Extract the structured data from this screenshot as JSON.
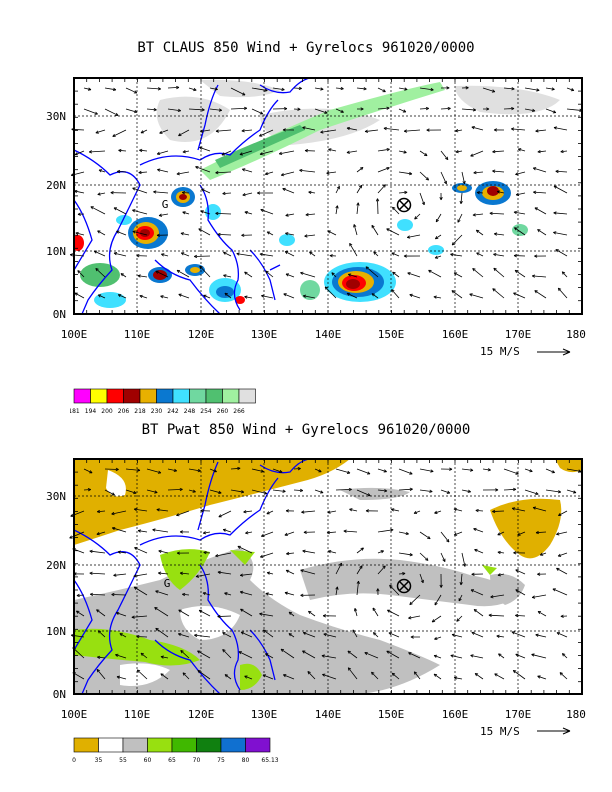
{
  "map1": {
    "title": "BT CLAUS 850 Wind + Gyrelocs 961020/0000",
    "lat_labels": [
      "30N",
      "20N",
      "10N",
      "0N"
    ],
    "lon_labels": [
      "100E",
      "110E",
      "120E",
      "130E",
      "140E",
      "150E",
      "160E",
      "170E",
      "180"
    ],
    "ref_vector": "15 M/S",
    "legend_values": [
      "181",
      "194",
      "200",
      "206",
      "218",
      "230",
      "242",
      "248",
      "254",
      "260",
      "266"
    ],
    "legend_colors": [
      "#ff00ff",
      "#ffff00",
      "#ff0000",
      "#a00000",
      "#e8b000",
      "#0a78d0",
      "#40e0ff",
      "#70d8a0",
      "#50c070",
      "#a0f0a0",
      "#e0e0e0"
    ],
    "gyre_symbols": [
      {
        "lon": 115,
        "lat": 18,
        "symbol": "G"
      },
      {
        "lon": 152,
        "lat": 17,
        "symbol": "⊗"
      }
    ]
  },
  "map2": {
    "title": "BT Pwat 850 Wind + Gyrelocs 961020/0000",
    "lat_labels": [
      "30N",
      "20N",
      "10N",
      "0N"
    ],
    "lon_labels": [
      "100E",
      "110E",
      "120E",
      "130E",
      "140E",
      "150E",
      "160E",
      "170E",
      "180"
    ],
    "ref_vector": "15 M/S",
    "legend_values": [
      "0",
      "35",
      "55",
      "60",
      "65",
      "70",
      "75",
      "80",
      "65.13"
    ],
    "legend_colors": [
      "#e0b000",
      "#ffffff",
      "#c0c0c0",
      "#98e010",
      "#40b800",
      "#108010",
      "#1070d0",
      "#8010d0"
    ],
    "gyre_symbols": [
      {
        "lon": 115,
        "lat": 18,
        "symbol": "G"
      },
      {
        "lon": 152,
        "lat": 17,
        "symbol": "⊗"
      }
    ]
  }
}
